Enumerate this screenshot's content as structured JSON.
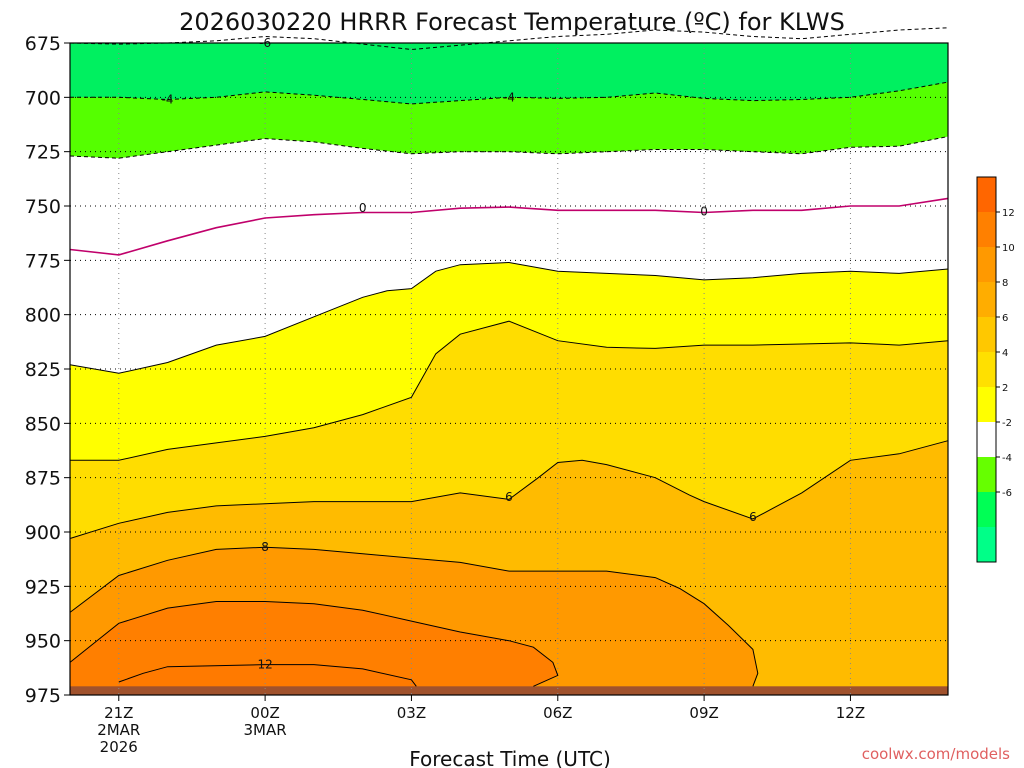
{
  "chart_data": {
    "type": "heatmap",
    "title": "2026030220 HRRR Forecast Temperature (ºC) for KLWS",
    "xlabel": "Forecast Time (UTC)",
    "ylabel": "",
    "x_unit": "forecast hours",
    "xlim": [
      -1,
      17
    ],
    "ylim": [
      675,
      975
    ],
    "y_reversed": true,
    "yticks": [
      675,
      700,
      725,
      750,
      775,
      800,
      825,
      850,
      875,
      900,
      925,
      950,
      975
    ],
    "xticks": [
      {
        "hour": 0,
        "lines": [
          "21Z",
          "2MAR",
          "2026"
        ]
      },
      {
        "hour": 3,
        "lines": [
          "00Z",
          "3MAR"
        ]
      },
      {
        "hour": 6,
        "lines": [
          "03Z"
        ]
      },
      {
        "hour": 9,
        "lines": [
          "06Z"
        ]
      },
      {
        "hour": 12,
        "lines": [
          "09Z"
        ]
      },
      {
        "hour": 15,
        "lines": [
          "12Z"
        ]
      }
    ],
    "ground_pressure": 971,
    "grid": true,
    "fill_bands": [
      {
        "level": 4,
        "color": "#ffff00",
        "comment": "top fill of 2-4 band"
      },
      {
        "level": 6,
        "color": "#ffdd00"
      },
      {
        "level": 8,
        "color": "#ffbb00"
      },
      {
        "level": 10,
        "color": "#ff9900"
      },
      {
        "level": 12,
        "color": "#ff7f00"
      }
    ],
    "contours": [
      {
        "value": -6,
        "style": "dashed",
        "color": "#000000",
        "points": [
          [
            -1,
            675
          ],
          [
            0,
            675.5
          ],
          [
            1,
            675
          ],
          [
            2,
            674
          ],
          [
            3,
            672
          ],
          [
            4,
            673
          ],
          [
            5,
            675.5
          ],
          [
            6,
            678
          ],
          [
            7,
            676
          ],
          [
            8,
            674
          ],
          [
            9,
            672
          ],
          [
            10,
            671
          ],
          [
            11,
            669
          ],
          [
            12,
            670
          ],
          [
            13,
            672
          ],
          [
            14,
            673
          ],
          [
            15,
            671
          ],
          [
            16,
            669
          ],
          [
            17,
            668
          ]
        ]
      },
      {
        "value": -4,
        "style": "dashed",
        "color": "#000000",
        "points": [
          [
            -1,
            700
          ],
          [
            0,
            700
          ],
          [
            1,
            701
          ],
          [
            2,
            700
          ],
          [
            3,
            697.5
          ],
          [
            4,
            699
          ],
          [
            5,
            701
          ],
          [
            6,
            703
          ],
          [
            7,
            701.5
          ],
          [
            8,
            700
          ],
          [
            9,
            700.5
          ],
          [
            10,
            700
          ],
          [
            11,
            698
          ],
          [
            12,
            700.5
          ],
          [
            13,
            701.5
          ],
          [
            14,
            701
          ],
          [
            15,
            700
          ],
          [
            16,
            697
          ],
          [
            17,
            693
          ]
        ]
      },
      {
        "value": -2,
        "style": "dashed",
        "color": "#000000",
        "points": [
          [
            -1,
            727
          ],
          [
            0,
            728
          ],
          [
            1,
            725
          ],
          [
            2,
            722
          ],
          [
            3,
            719
          ],
          [
            4,
            720.5
          ],
          [
            5,
            723.5
          ],
          [
            6,
            726
          ],
          [
            7,
            725
          ],
          [
            8,
            725
          ],
          [
            9,
            726
          ],
          [
            10,
            725
          ],
          [
            11,
            724
          ],
          [
            12,
            724
          ],
          [
            13,
            725
          ],
          [
            14,
            726
          ],
          [
            15,
            723
          ],
          [
            16,
            722.5
          ],
          [
            17,
            718
          ]
        ]
      },
      {
        "value": 0,
        "style": "solid",
        "color": "#c0006b",
        "points": [
          [
            -1,
            770
          ],
          [
            0,
            772.5
          ],
          [
            1,
            766
          ],
          [
            2,
            760
          ],
          [
            3,
            755.5
          ],
          [
            4,
            754
          ],
          [
            5,
            753
          ],
          [
            6,
            753
          ],
          [
            7,
            751
          ],
          [
            8,
            750.5
          ],
          [
            9,
            752
          ],
          [
            10,
            752
          ],
          [
            11,
            752
          ],
          [
            12,
            753
          ],
          [
            13,
            752
          ],
          [
            14,
            752
          ],
          [
            15,
            750
          ],
          [
            16,
            750
          ],
          [
            17,
            746.5
          ]
        ]
      },
      {
        "value": 2,
        "style": "solid",
        "color": "#000000",
        "points": [
          [
            -1,
            823
          ],
          [
            0,
            827
          ],
          [
            1,
            822
          ],
          [
            2,
            814
          ],
          [
            3,
            810
          ],
          [
            4,
            801
          ],
          [
            5,
            792
          ],
          [
            5.5,
            789
          ],
          [
            6,
            788
          ],
          [
            6.5,
            780
          ],
          [
            7,
            777
          ],
          [
            8,
            776
          ],
          [
            9,
            780
          ],
          [
            10,
            781
          ],
          [
            11,
            782
          ],
          [
            12,
            784
          ],
          [
            13,
            783
          ],
          [
            14,
            781
          ],
          [
            15,
            780
          ],
          [
            16,
            781
          ],
          [
            17,
            779
          ]
        ]
      },
      {
        "value": 4,
        "style": "solid",
        "color": "#000000",
        "points": [
          [
            -1,
            867
          ],
          [
            0,
            867
          ],
          [
            1,
            862
          ],
          [
            2,
            859
          ],
          [
            3,
            856
          ],
          [
            4,
            852
          ],
          [
            5,
            846
          ],
          [
            6,
            838
          ],
          [
            6.5,
            818
          ],
          [
            7,
            809
          ],
          [
            8,
            803
          ],
          [
            9,
            812
          ],
          [
            10,
            815
          ],
          [
            11,
            815.5
          ],
          [
            12,
            814
          ],
          [
            13,
            814
          ],
          [
            14,
            813.5
          ],
          [
            15,
            813
          ],
          [
            16,
            814
          ],
          [
            17,
            812
          ]
        ]
      },
      {
        "value": 6,
        "style": "solid",
        "color": "#000000",
        "points": [
          [
            -1,
            903
          ],
          [
            0,
            896
          ],
          [
            1,
            891
          ],
          [
            2,
            888
          ],
          [
            3,
            887
          ],
          [
            4,
            886
          ],
          [
            5,
            886
          ],
          [
            6,
            886
          ],
          [
            7,
            882
          ],
          [
            8,
            885
          ],
          [
            8.6,
            875
          ],
          [
            9,
            868
          ],
          [
            9.5,
            867
          ],
          [
            10,
            869
          ],
          [
            11,
            875
          ],
          [
            11.7,
            883
          ],
          [
            12,
            886
          ],
          [
            13,
            894
          ],
          [
            14,
            882
          ],
          [
            15,
            867
          ],
          [
            16,
            864
          ],
          [
            17,
            858
          ]
        ]
      },
      {
        "value": 8,
        "style": "solid",
        "color": "#000000",
        "points": [
          [
            -1,
            937
          ],
          [
            0,
            920
          ],
          [
            1,
            913
          ],
          [
            2,
            908
          ],
          [
            3,
            907
          ],
          [
            4,
            908
          ],
          [
            5,
            910
          ],
          [
            6,
            912
          ],
          [
            7,
            914
          ],
          [
            8,
            918
          ],
          [
            9,
            918
          ],
          [
            10,
            918
          ],
          [
            11,
            921
          ],
          [
            11.5,
            926
          ],
          [
            12,
            933
          ],
          [
            12.5,
            943
          ],
          [
            13,
            954
          ],
          [
            13.1,
            965
          ],
          [
            13,
            971
          ]
        ]
      },
      {
        "value": 10,
        "style": "solid",
        "color": "#000000",
        "points": [
          [
            -1,
            960
          ],
          [
            0,
            942
          ],
          [
            1,
            935
          ],
          [
            2,
            932
          ],
          [
            3,
            932
          ],
          [
            4,
            933
          ],
          [
            5,
            936
          ],
          [
            6,
            941
          ],
          [
            7,
            946
          ],
          [
            8,
            950
          ],
          [
            8.5,
            953
          ],
          [
            8.9,
            960
          ],
          [
            9,
            966
          ],
          [
            8.5,
            971
          ]
        ]
      },
      {
        "value": 12,
        "style": "solid",
        "color": "#000000",
        "points": [
          [
            0,
            969
          ],
          [
            0.5,
            965
          ],
          [
            1,
            962
          ],
          [
            3,
            961
          ],
          [
            4,
            961
          ],
          [
            5,
            963
          ],
          [
            6,
            968
          ],
          [
            6.1,
            971
          ]
        ]
      }
    ],
    "contour_labels": [
      {
        "text": "-6",
        "hour": 3,
        "pressure": 675
      },
      {
        "text": "-4",
        "hour": 1,
        "pressure": 701
      },
      {
        "text": "-4",
        "hour": 8,
        "pressure": 700
      },
      {
        "text": "0",
        "hour": 5,
        "pressure": 751
      },
      {
        "text": "0",
        "hour": 12,
        "pressure": 752.5
      },
      {
        "text": "6",
        "hour": 8,
        "pressure": 884
      },
      {
        "text": "6",
        "hour": 13,
        "pressure": 893
      },
      {
        "text": "8",
        "hour": 3,
        "pressure": 907
      },
      {
        "text": "12",
        "hour": 3,
        "pressure": 961
      }
    ],
    "colorbar": {
      "levels": [
        14,
        12,
        10,
        8,
        6,
        4,
        2,
        -2,
        -4,
        -6,
        -8
      ],
      "labels": [
        12,
        10,
        8,
        6,
        4,
        2,
        -2,
        -4,
        -6
      ],
      "colors": [
        "#ff6600",
        "#ff8000",
        "#ff9900",
        "#ffad00",
        "#ffc800",
        "#ffe000",
        "#ffff00",
        "#ffffff",
        "#66ff00",
        "#00ff55",
        "#00ff88"
      ]
    },
    "colors": {
      "neg2_to_neg4": "#55ff00",
      "neg4_to_neg6": "#00f060",
      "ground": "#a0522d"
    }
  },
  "credit": "coolwx.com/models"
}
